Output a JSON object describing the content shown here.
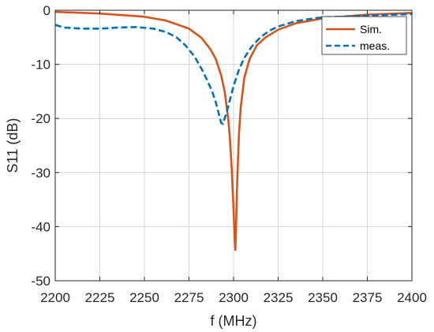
{
  "chart_data": {
    "type": "line",
    "xlabel": "f (MHz)",
    "ylabel": "S11 (dB)",
    "xlim": [
      2200,
      2400
    ],
    "ylim": [
      -50,
      0
    ],
    "xticks": [
      2200,
      2225,
      2250,
      2275,
      2300,
      2325,
      2350,
      2375,
      2400
    ],
    "yticks": [
      0,
      -10,
      -20,
      -30,
      -40,
      -50
    ],
    "grid": true,
    "legend_position": "top-right",
    "series": [
      {
        "name": "Sim.",
        "color": "#D95319",
        "style": "solid",
        "x": [
          2200,
          2225,
          2250,
          2262,
          2275,
          2282,
          2287,
          2290,
          2293,
          2295,
          2297,
          2298,
          2299,
          2300,
          2300.6,
          2301,
          2301.4,
          2302,
          2303,
          2304,
          2306,
          2309,
          2313,
          2318,
          2325,
          2335,
          2350,
          2375,
          2400
        ],
        "y": [
          -0.3,
          -0.6,
          -1.2,
          -1.9,
          -3.4,
          -5.1,
          -7.2,
          -9.0,
          -12.0,
          -15.0,
          -20.0,
          -24.0,
          -29.5,
          -37.0,
          -42.0,
          -44.3,
          -40.0,
          -32.0,
          -23.0,
          -18.0,
          -12.5,
          -9.0,
          -6.5,
          -5.0,
          -3.6,
          -2.4,
          -1.5,
          -0.8,
          -0.5
        ]
      },
      {
        "name": "meas.",
        "color": "#0072BD",
        "style": "dashed",
        "x": [
          2200,
          2205,
          2215,
          2225,
          2235,
          2245,
          2255,
          2262,
          2268,
          2273,
          2278,
          2282,
          2285,
          2288,
          2290,
          2292,
          2293,
          2294,
          2295,
          2296,
          2298,
          2300,
          2303,
          2306,
          2310,
          2315,
          2320,
          2325,
          2335,
          2345,
          2350,
          2360,
          2375,
          2400
        ],
        "y": [
          -2.7,
          -3.2,
          -3.4,
          -3.4,
          -3.2,
          -3.1,
          -3.4,
          -4.0,
          -5.0,
          -6.5,
          -8.5,
          -10.8,
          -12.8,
          -15.0,
          -17.0,
          -19.5,
          -20.8,
          -21.0,
          -20.0,
          -19.0,
          -16.5,
          -14.0,
          -11.0,
          -8.8,
          -6.8,
          -5.0,
          -3.8,
          -3.0,
          -2.0,
          -1.5,
          -1.3,
          -1.2,
          -1.0,
          -0.7
        ]
      }
    ]
  }
}
